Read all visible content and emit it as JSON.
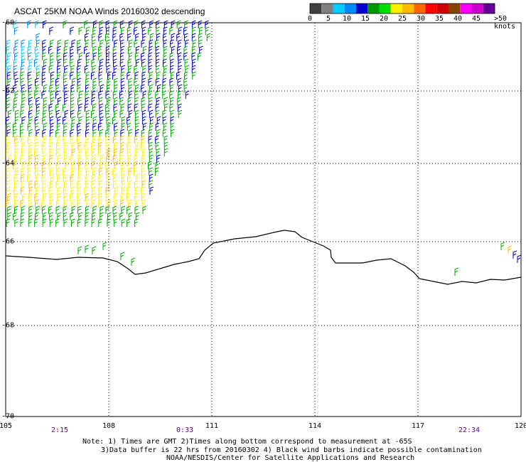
{
  "title": "ASCAT 25KM NOAA Winds 20160302 descending",
  "legend": {
    "labels": [
      "0",
      "5",
      "10",
      "15",
      "20",
      "25",
      "30",
      "35",
      "40",
      "45",
      ">50 knots"
    ],
    "colors": [
      "#404040",
      "#808080",
      "#00ccff",
      "#0088ff",
      "#0000cc",
      "#009900",
      "#00dd00",
      "#ffee00",
      "#ffbb00",
      "#ff6600",
      "#ff0000",
      "#cc0000",
      "#884400",
      "#ff00ff",
      "#cc00cc",
      "#660099"
    ]
  },
  "axes": {
    "x_ticks": [
      "105",
      "108",
      "111",
      "114",
      "117",
      "120"
    ],
    "y_ticks": [
      "-60",
      "-62",
      "-64",
      "-66",
      "-68",
      "-70"
    ]
  },
  "times": [
    "2:15",
    "0:33",
    "22:34"
  ],
  "notes": {
    "line1": "Note: 1) Times are GMT 2)Times along bottom correspond to measurement at -65S",
    "line2": "3)Data buffer is 22 hrs from 20160302 4) Black wind barbs indicate possible contamination",
    "line3": "NOAA/NESDIS/Center for Satellite Applications and Research"
  },
  "colors": {
    "coastline": "#000000",
    "grid": "#000000",
    "time_labels": "#660099"
  }
}
